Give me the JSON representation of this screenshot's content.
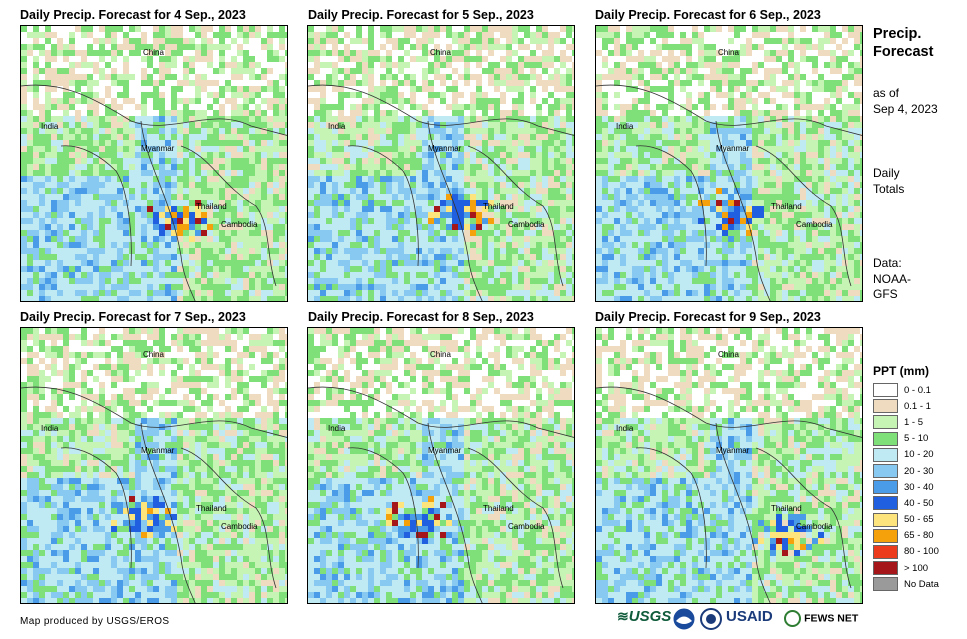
{
  "panels": [
    {
      "title": "Daily Precip. Forecast for 4 Sep., 2023"
    },
    {
      "title": "Daily Precip. Forecast for 5 Sep., 2023"
    },
    {
      "title": "Daily Precip. Forecast for 6 Sep., 2023"
    },
    {
      "title": "Daily Precip. Forecast for 7 Sep., 2023"
    },
    {
      "title": "Daily Precip. Forecast for 8 Sep., 2023"
    },
    {
      "title": "Daily Precip. Forecast for 9 Sep., 2023"
    }
  ],
  "countries": {
    "china": "China",
    "india": "India",
    "myanmar": "Myanmar",
    "thailand": "Thailand",
    "cambodia": "Cambodia"
  },
  "sidebar": {
    "title_line1": "Precip.",
    "title_line2": "Forecast",
    "asof_line1": "as of",
    "asof_line2": "Sep 4, 2023",
    "totals_line1": "Daily",
    "totals_line2": "Totals",
    "data_line1": "Data:",
    "data_line2": "NOAA-",
    "data_line3": "GFS"
  },
  "legend": {
    "title": "PPT (mm)",
    "items": [
      {
        "label": "0 - 0.1",
        "color": "#ffffff"
      },
      {
        "label": "0.1 - 1",
        "color": "#efdcc0"
      },
      {
        "label": "1 - 5",
        "color": "#c6f4b4"
      },
      {
        "label": "5 - 10",
        "color": "#7fe07a"
      },
      {
        "label": "10 - 20",
        "color": "#bfe9f3"
      },
      {
        "label": "20 - 30",
        "color": "#87c9f0"
      },
      {
        "label": "30 - 40",
        "color": "#4a9be8"
      },
      {
        "label": "40 - 50",
        "color": "#1f5fe0"
      },
      {
        "label": "50 - 65",
        "color": "#fde47c"
      },
      {
        "label": "65 - 80",
        "color": "#f5a10c"
      },
      {
        "label": "80 - 100",
        "color": "#ec3a1c"
      },
      {
        "label": "> 100",
        "color": "#a5161b"
      },
      {
        "label": "No Data",
        "color": "#9a9a9a"
      }
    ]
  },
  "footer": {
    "credit": "Map produced by USGS/EROS"
  },
  "logos": {
    "usgs": "USGS",
    "usaid": "USAID",
    "fewsnet": "FEWS NET"
  }
}
